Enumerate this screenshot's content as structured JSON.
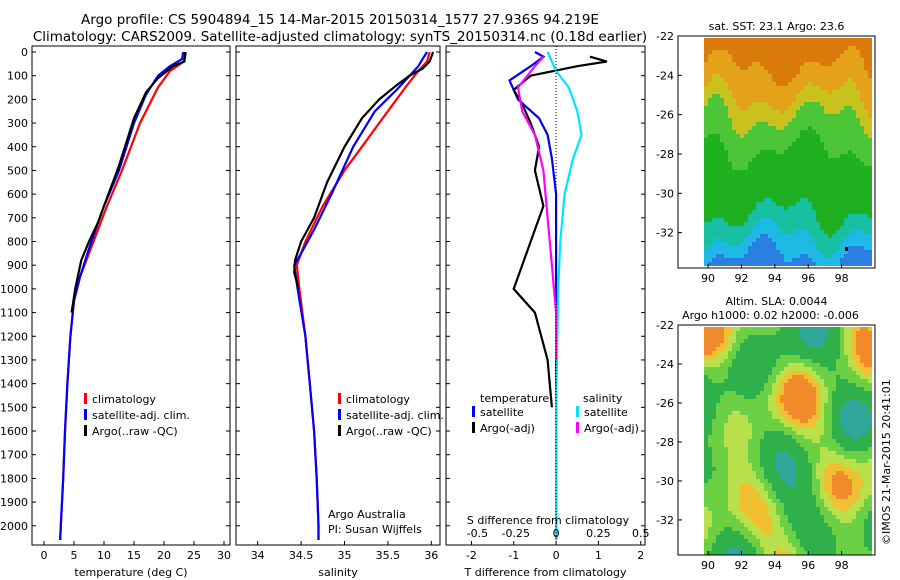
{
  "title": {
    "line1": "Argo profile: CS 5904894_15 14-Mar-2015 20150314_1577 27.936S 94.219E",
    "line2": "Climatology: CARS2009. Satellite-adjusted climatology: synTS_20150314.nc (0.18d earlier)"
  },
  "credit": "©IMOS 21-Mar-2015 20:41:01",
  "colors": {
    "climatology": "#ff0000",
    "satellite": "#0000ff",
    "argo": "#000000",
    "sal_sat": "#00e5ff",
    "sal_argo": "#ff00ff"
  },
  "chart_data": [
    {
      "type": "line",
      "id": "temperature",
      "xlabel": "temperature (deg C)",
      "ylabel": "",
      "xlim": [
        -2,
        31
      ],
      "ylim": [
        2060,
        0
      ],
      "x_ticks": [
        0,
        5,
        10,
        15,
        20,
        25,
        30
      ],
      "y_ticks": [
        0,
        100,
        200,
        300,
        400,
        500,
        600,
        700,
        800,
        900,
        1000,
        1100,
        1200,
        1300,
        1400,
        1500,
        1600,
        1700,
        1800,
        1900,
        2000
      ],
      "legend": [
        "climatology",
        "satellite-adj. clim.",
        "Argo(..raw -QC)"
      ],
      "series": [
        {
          "name": "climatology",
          "color": "#ff0000",
          "points": [
            [
              23.5,
              0
            ],
            [
              23.3,
              40
            ],
            [
              21,
              80
            ],
            [
              19,
              150
            ],
            [
              16,
              300
            ],
            [
              13,
              500
            ],
            [
              10.5,
              650
            ],
            [
              9,
              750
            ],
            [
              7.5,
              850
            ],
            [
              6,
              950
            ],
            [
              5,
              1050
            ],
            [
              4.4,
              1200
            ],
            [
              3.9,
              1400
            ],
            [
              3.5,
              1600
            ],
            [
              3.2,
              1800
            ],
            [
              2.8,
              2000
            ],
            [
              2.7,
              2060
            ]
          ]
        },
        {
          "name": "satellite-adj. clim.",
          "color": "#0000ff",
          "points": [
            [
              23.2,
              0
            ],
            [
              23,
              30
            ],
            [
              21,
              60
            ],
            [
              19,
              100
            ],
            [
              17,
              180
            ],
            [
              15,
              300
            ],
            [
              12.5,
              500
            ],
            [
              10,
              650
            ],
            [
              9,
              720
            ],
            [
              7.5,
              830
            ],
            [
              6,
              950
            ],
            [
              5,
              1050
            ],
            [
              4.4,
              1200
            ],
            [
              3.9,
              1400
            ],
            [
              3.5,
              1600
            ],
            [
              3.2,
              1800
            ],
            [
              2.8,
              2000
            ],
            [
              2.7,
              2060
            ]
          ]
        },
        {
          "name": "Argo(..raw -QC)",
          "color": "#000000",
          "points": [
            [
              23.6,
              0
            ],
            [
              23.4,
              40
            ],
            [
              21.5,
              60
            ],
            [
              20.5,
              80
            ],
            [
              19,
              110
            ],
            [
              17,
              170
            ],
            [
              15,
              280
            ],
            [
              12.5,
              480
            ],
            [
              10,
              650
            ],
            [
              9,
              720
            ],
            [
              7.5,
              800
            ],
            [
              6.2,
              880
            ],
            [
              5.2,
              1000
            ],
            [
              4.6,
              1100
            ]
          ]
        }
      ]
    },
    {
      "type": "line",
      "id": "salinity",
      "xlabel": "salinity",
      "xlim": [
        33.75,
        36.1
      ],
      "ylim": [
        2060,
        0
      ],
      "x_ticks": [
        34,
        34.5,
        35,
        35.5,
        36
      ],
      "x_tick_labels": [
        "34",
        "34.5",
        "35",
        "35.5",
        "36"
      ],
      "legend": [
        "climatology",
        "satellite-adj. clim.",
        "Argo(..raw -QC)"
      ],
      "annotation": [
        "Argo Australia",
        "PI: Susan Wijffels"
      ],
      "series": [
        {
          "name": "climatology",
          "color": "#ff0000",
          "points": [
            [
              35.98,
              0
            ],
            [
              35.95,
              40
            ],
            [
              35.85,
              80
            ],
            [
              35.7,
              150
            ],
            [
              35.5,
              250
            ],
            [
              35.2,
              400
            ],
            [
              35,
              500
            ],
            [
              34.75,
              650
            ],
            [
              34.55,
              800
            ],
            [
              34.45,
              900
            ],
            [
              34.48,
              1000
            ],
            [
              34.55,
              1200
            ],
            [
              34.6,
              1400
            ],
            [
              34.65,
              1600
            ],
            [
              34.68,
              1800
            ],
            [
              34.7,
              2000
            ],
            [
              34.7,
              2060
            ]
          ]
        },
        {
          "name": "satellite-adj. clim.",
          "color": "#0000ff",
          "points": [
            [
              35.95,
              0
            ],
            [
              35.9,
              30
            ],
            [
              35.85,
              60
            ],
            [
              35.75,
              100
            ],
            [
              35.6,
              160
            ],
            [
              35.35,
              250
            ],
            [
              35.1,
              400
            ],
            [
              34.85,
              600
            ],
            [
              34.65,
              750
            ],
            [
              34.5,
              850
            ],
            [
              34.42,
              900
            ],
            [
              34.46,
              1000
            ],
            [
              34.55,
              1200
            ],
            [
              34.6,
              1400
            ],
            [
              34.65,
              1600
            ],
            [
              34.68,
              1800
            ],
            [
              34.7,
              2000
            ],
            [
              34.7,
              2060
            ]
          ]
        },
        {
          "name": "Argo(..raw -QC)",
          "color": "#000000",
          "points": [
            [
              36.02,
              0
            ],
            [
              35.98,
              40
            ],
            [
              35.9,
              70
            ],
            [
              35.75,
              100
            ],
            [
              35.6,
              140
            ],
            [
              35.4,
              200
            ],
            [
              35.2,
              280
            ],
            [
              35,
              400
            ],
            [
              34.8,
              550
            ],
            [
              34.65,
              700
            ],
            [
              34.5,
              800
            ],
            [
              34.43,
              880
            ],
            [
              34.42,
              930
            ],
            [
              34.47,
              1000
            ]
          ]
        }
      ]
    },
    {
      "type": "line",
      "id": "difference",
      "xlabel": "T difference from climatology",
      "xlabel_top": "S difference from climatology",
      "xlim": [
        -2.6,
        2.1
      ],
      "ylim": [
        2060,
        0
      ],
      "x_ticks": [
        -2,
        -1,
        0,
        1,
        2
      ],
      "x_top_ticks": [
        "-0.5",
        "-0.25",
        "0",
        "0.25",
        "0.5"
      ],
      "legend_left_title": "temperature",
      "legend_right_title": "salinity",
      "legend": [
        "satellite",
        "Argo(-adj)",
        "satellite",
        "Argo(-adj)"
      ],
      "series": [
        {
          "name": "T satellite",
          "color": "#0000ff",
          "points": [
            [
              -0.5,
              0
            ],
            [
              -0.3,
              20
            ],
            [
              -0.6,
              60
            ],
            [
              -1.1,
              120
            ],
            [
              -0.9,
              200
            ],
            [
              -0.4,
              280
            ],
            [
              -0.2,
              350
            ],
            [
              -0.1,
              450
            ],
            [
              0,
              600
            ],
            [
              0,
              800
            ],
            [
              0,
              1000
            ],
            [
              0,
              1500
            ],
            [
              0,
              2000
            ],
            [
              0,
              2060
            ]
          ]
        },
        {
          "name": "T Argo(-adj)",
          "color": "#000000",
          "points": [
            [
              0.8,
              20
            ],
            [
              1.2,
              40
            ],
            [
              0.5,
              60
            ],
            [
              -0.6,
              100
            ],
            [
              -1,
              160
            ],
            [
              -0.8,
              220
            ],
            [
              -0.6,
              300
            ],
            [
              -0.4,
              400
            ],
            [
              -0.5,
              500
            ],
            [
              -0.3,
              650
            ],
            [
              -0.6,
              800
            ],
            [
              -0.8,
              900
            ],
            [
              -1,
              1000
            ],
            [
              -0.5,
              1100
            ],
            [
              -0.2,
              1300
            ],
            [
              -0.1,
              1500
            ]
          ]
        },
        {
          "name": "S satellite",
          "color": "#00e5ff",
          "points": [
            [
              -0.2,
              0
            ],
            [
              -0.1,
              40
            ],
            [
              0,
              80
            ],
            [
              0.3,
              150
            ],
            [
              0.5,
              250
            ],
            [
              0.6,
              350
            ],
            [
              0.4,
              450
            ],
            [
              0.2,
              600
            ],
            [
              0.1,
              800
            ],
            [
              0.05,
              1000
            ],
            [
              0,
              1500
            ],
            [
              0,
              2000
            ],
            [
              0,
              2060
            ]
          ]
        },
        {
          "name": "S Argo(-adj)",
          "color": "#ff00ff",
          "points": [
            [
              -0.3,
              20
            ],
            [
              -0.5,
              60
            ],
            [
              -0.9,
              150
            ],
            [
              -0.8,
              250
            ],
            [
              -0.5,
              350
            ],
            [
              -0.3,
              500
            ],
            [
              -0.2,
              700
            ],
            [
              -0.1,
              900
            ],
            [
              0,
              1100
            ],
            [
              0,
              1300
            ]
          ]
        }
      ]
    },
    {
      "type": "heatmap",
      "id": "sst-map",
      "title": "sat. SST: 23.1  Argo: 23.6",
      "xlim": [
        88.2,
        100
      ],
      "ylim": [
        -33.8,
        -22
      ],
      "x_ticks": [
        90,
        92,
        94,
        96,
        98
      ],
      "y_ticks": [
        -22,
        -24,
        -26,
        -28,
        -30,
        -32
      ],
      "colors": [
        "#d97a0a",
        "#e3a21a",
        "#c9c21e",
        "#4cc637",
        "#1fb01f",
        "#16c0a0",
        "#1fb9e6",
        "#2a7fe0"
      ]
    },
    {
      "type": "heatmap",
      "id": "sla-map",
      "title_line1": "Altim. SLA: 0.0044",
      "title_line2": "Argo h1000: 0.02 h2000: -0.006",
      "xlim": [
        88.2,
        100
      ],
      "ylim": [
        -33.8,
        -22
      ],
      "x_ticks": [
        90,
        92,
        94,
        96,
        98
      ],
      "y_ticks": [
        -22,
        -24,
        -26,
        -28,
        -30,
        -32
      ],
      "colors": [
        "#2fb04a",
        "#6bd044",
        "#b7e04a",
        "#f0c030",
        "#f08a2a",
        "#2fa89a"
      ]
    }
  ]
}
